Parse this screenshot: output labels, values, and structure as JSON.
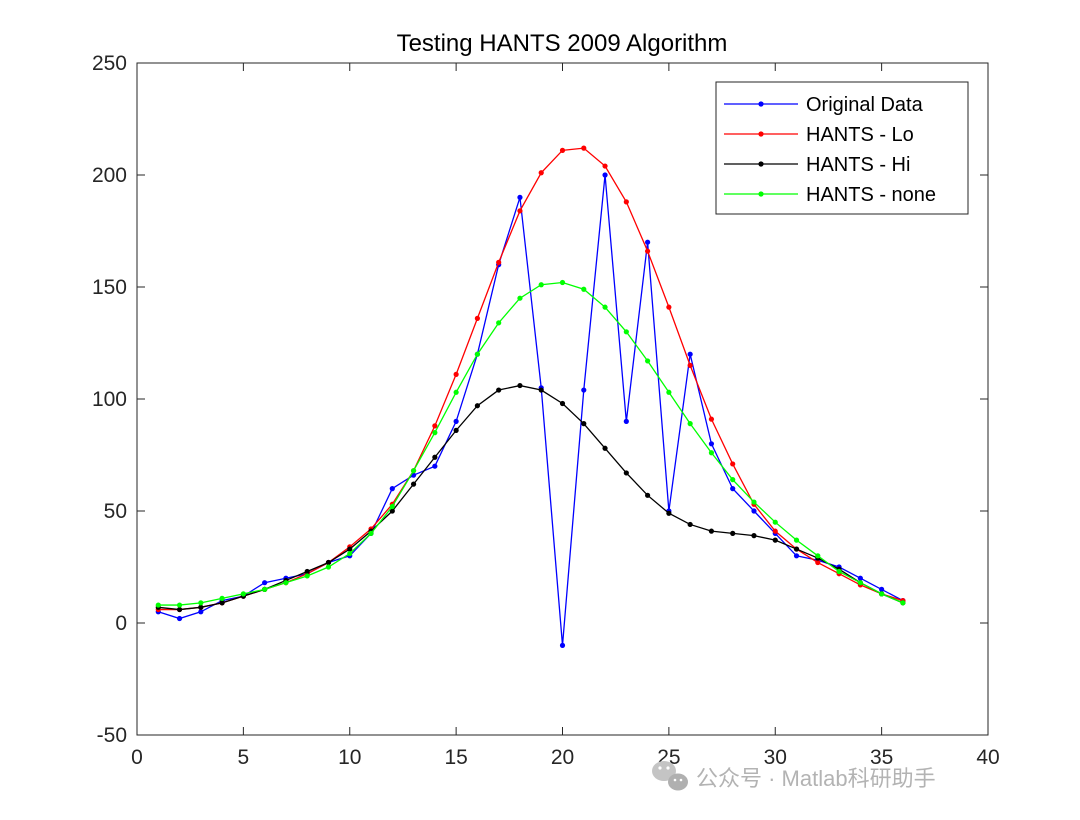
{
  "chart_data": {
    "type": "line",
    "title": "Testing HANTS 2009 Algorithm",
    "xlabel": "",
    "ylabel": "",
    "xlim": [
      0,
      40
    ],
    "ylim": [
      -50,
      250
    ],
    "xticks": [
      0,
      5,
      10,
      15,
      20,
      25,
      30,
      35,
      40
    ],
    "yticks": [
      -50,
      0,
      50,
      100,
      150,
      200,
      250
    ],
    "grid": false,
    "legend_position": "top-right",
    "x": [
      1,
      2,
      3,
      4,
      5,
      6,
      7,
      8,
      9,
      10,
      11,
      12,
      13,
      14,
      15,
      16,
      17,
      18,
      19,
      20,
      21,
      22,
      23,
      24,
      25,
      26,
      27,
      28,
      29,
      30,
      31,
      32,
      33,
      34,
      35,
      36
    ],
    "series": [
      {
        "name": "Original Data",
        "color": "#0000ff",
        "values": [
          5,
          2,
          5,
          10,
          12,
          18,
          20,
          22,
          27,
          30,
          40,
          60,
          66,
          70,
          90,
          120,
          160,
          190,
          105,
          -10,
          104,
          200,
          90,
          170,
          50,
          120,
          80,
          60,
          50,
          40,
          30,
          28,
          25,
          20,
          15,
          10
        ]
      },
      {
        "name": "HANTS - Lo",
        "color": "#ff0000",
        "values": [
          6,
          6,
          7,
          9,
          12,
          15,
          18,
          22,
          27,
          34,
          42,
          53,
          68,
          88,
          111,
          136,
          161,
          184,
          201,
          211,
          212,
          204,
          188,
          166,
          141,
          115,
          91,
          71,
          53,
          41,
          33,
          27,
          22,
          17,
          13,
          10
        ]
      },
      {
        "name": "HANTS - Hi",
        "color": "#000000",
        "values": [
          7,
          6,
          7,
          9,
          12,
          15,
          19,
          23,
          27,
          33,
          41,
          50,
          62,
          74,
          86,
          97,
          104,
          106,
          104,
          98,
          89,
          78,
          67,
          57,
          49,
          44,
          41,
          40,
          39,
          37,
          33,
          29,
          24,
          18,
          13,
          9
        ]
      },
      {
        "name": "HANTS - none",
        "color": "#00ff00",
        "values": [
          8,
          8,
          9,
          11,
          13,
          15,
          18,
          21,
          25,
          31,
          40,
          52,
          68,
          85,
          103,
          120,
          134,
          145,
          151,
          152,
          149,
          141,
          130,
          117,
          103,
          89,
          76,
          64,
          54,
          45,
          37,
          30,
          23,
          18,
          13,
          9
        ]
      }
    ]
  },
  "watermark": "公众号 · Matlab科研助手"
}
